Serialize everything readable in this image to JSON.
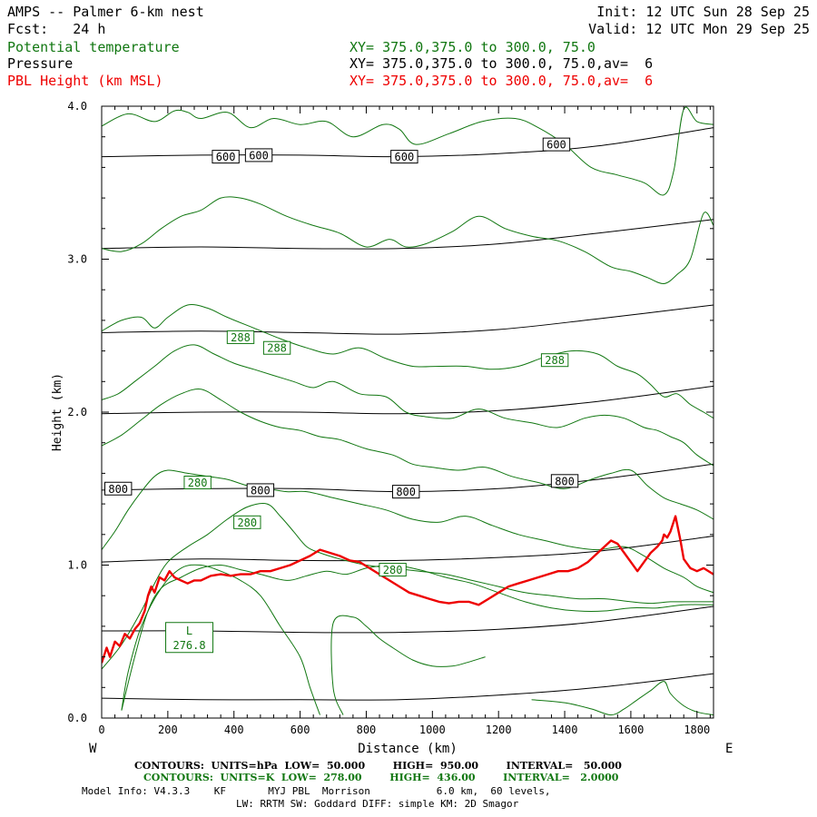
{
  "header": {
    "model": "AMPS -- Palmer 6-km nest",
    "fcst": "Fcst:   24 h",
    "init": "Init: 12 UTC Sun 28 Sep 25",
    "valid": "Valid: 12 UTC Mon 29 Sep 25",
    "fields": [
      {
        "name": "Potential temperature",
        "xy": "XY= 375.0,375.0 to 300.0, 75.0",
        "color": "#117711"
      },
      {
        "name": "Pressure",
        "xy": "XY= 375.0,375.0 to 300.0, 75.0,av=  6",
        "color": "#000000"
      },
      {
        "name": "PBL Height (km MSL)",
        "xy": "XY= 375.0,375.0 to 300.0, 75.0,av=  6",
        "color": "#ee0000"
      }
    ]
  },
  "footer": {
    "pressure_contours": "CONTOURS:  UNITS=hPa  LOW=  50.000        HIGH=  950.00        INTERVAL=   50.000",
    "theta_contours": "CONTOURS:  UNITS=K  LOW=  278.00        HIGH=  436.00        INTERVAL=   2.0000",
    "model_info": "Model Info: V4.3.3    KF       MYJ PBL  Morrison           6.0 km,  60 levels,",
    "model_info2": "LW: RRTM SW: Goddard DIFF: simple KM: 2D Smagor"
  },
  "chart_data": {
    "type": "line",
    "xlabel": "Distance (km)",
    "ylabel": "Height (km)",
    "xlim": [
      0,
      1850
    ],
    "ylim": [
      0.0,
      4.0
    ],
    "x_ticks": [
      0,
      200,
      400,
      600,
      800,
      1000,
      1200,
      1400,
      1600,
      1800
    ],
    "y_ticks": [
      "0.0",
      "1.0",
      "2.0",
      "3.0",
      "4.0"
    ],
    "left_end": "W",
    "right_end": "E",
    "colors": {
      "pressure": "#000000",
      "theta": "#117711",
      "pbl": "#ee0000"
    },
    "pressure_isobars": [
      {
        "x": [
          0,
          300,
          600,
          900,
          1200,
          1500,
          1850
        ],
        "y": [
          0.13,
          0.12,
          0.12,
          0.12,
          0.15,
          0.2,
          0.29
        ]
      },
      {
        "x": [
          0,
          300,
          600,
          900,
          1200,
          1500,
          1850
        ],
        "y": [
          0.57,
          0.57,
          0.56,
          0.56,
          0.58,
          0.63,
          0.73
        ]
      },
      {
        "x": [
          0,
          300,
          600,
          900,
          1200,
          1500,
          1850
        ],
        "y": [
          1.02,
          1.04,
          1.03,
          1.03,
          1.05,
          1.09,
          1.19
        ]
      },
      {
        "x": [
          0,
          300,
          600,
          900,
          1200,
          1500,
          1850
        ],
        "y": [
          1.49,
          1.5,
          1.5,
          1.48,
          1.5,
          1.56,
          1.66
        ]
      },
      {
        "x": [
          0,
          300,
          600,
          900,
          1200,
          1500,
          1850
        ],
        "y": [
          1.99,
          2.0,
          2.0,
          1.99,
          2.01,
          2.07,
          2.17
        ]
      },
      {
        "x": [
          0,
          300,
          600,
          900,
          1200,
          1500,
          1850
        ],
        "y": [
          2.52,
          2.53,
          2.52,
          2.51,
          2.54,
          2.61,
          2.7
        ]
      },
      {
        "x": [
          0,
          300,
          600,
          900,
          1200,
          1500,
          1850
        ],
        "y": [
          3.07,
          3.08,
          3.07,
          3.07,
          3.1,
          3.17,
          3.26
        ]
      },
      {
        "x": [
          0,
          300,
          600,
          900,
          1200,
          1500,
          1850
        ],
        "y": [
          3.67,
          3.68,
          3.68,
          3.67,
          3.69,
          3.74,
          3.86
        ]
      }
    ],
    "pressure_labels": [
      {
        "text": "600",
        "x": 375,
        "y": 3.67
      },
      {
        "text": "600",
        "x": 475,
        "y": 3.68
      },
      {
        "text": "600",
        "x": 915,
        "y": 3.67
      },
      {
        "text": "600",
        "x": 1375,
        "y": 3.75
      },
      {
        "text": "800",
        "x": 50,
        "y": 1.5
      },
      {
        "text": "800",
        "x": 480,
        "y": 1.49
      },
      {
        "text": "800",
        "x": 920,
        "y": 1.48
      },
      {
        "text": "800",
        "x": 1400,
        "y": 1.55
      }
    ],
    "theta_isotherms": [
      {
        "x": [
          0,
          80,
          160,
          220,
          260,
          300,
          380,
          450,
          520,
          600,
          680,
          760,
          850,
          900,
          950,
          1050,
          1150,
          1250,
          1320,
          1400,
          1480,
          1560,
          1640,
          1700,
          1730,
          1760,
          1800,
          1850
        ],
        "y": [
          3.87,
          3.95,
          3.9,
          3.97,
          3.96,
          3.92,
          3.96,
          3.86,
          3.92,
          3.88,
          3.9,
          3.8,
          3.88,
          3.85,
          3.75,
          3.82,
          3.9,
          3.92,
          3.86,
          3.75,
          3.6,
          3.55,
          3.5,
          3.42,
          3.58,
          3.98,
          3.9,
          3.88
        ]
      },
      {
        "x": [
          0,
          60,
          120,
          180,
          240,
          300,
          360,
          420,
          480,
          560,
          640,
          720,
          800,
          870,
          920,
          980,
          1060,
          1140,
          1220,
          1300,
          1380,
          1460,
          1540,
          1600,
          1650,
          1700,
          1740,
          1780,
          1820,
          1850
        ],
        "y": [
          3.07,
          3.05,
          3.1,
          3.2,
          3.28,
          3.32,
          3.4,
          3.4,
          3.36,
          3.28,
          3.22,
          3.17,
          3.08,
          3.13,
          3.08,
          3.1,
          3.18,
          3.28,
          3.2,
          3.15,
          3.12,
          3.05,
          2.95,
          2.92,
          2.88,
          2.84,
          2.9,
          3.0,
          3.3,
          3.22
        ]
      },
      {
        "x": [
          0,
          60,
          120,
          160,
          200,
          260,
          320,
          380,
          460,
          540,
          620,
          700,
          780,
          860,
          940,
          1020,
          1100,
          1180,
          1260,
          1340,
          1420,
          1500,
          1560,
          1620,
          1660,
          1700,
          1740,
          1780,
          1820,
          1850
        ],
        "y": [
          2.53,
          2.6,
          2.62,
          2.55,
          2.62,
          2.7,
          2.68,
          2.62,
          2.55,
          2.48,
          2.42,
          2.38,
          2.42,
          2.35,
          2.3,
          2.3,
          2.3,
          2.28,
          2.3,
          2.36,
          2.4,
          2.38,
          2.3,
          2.25,
          2.18,
          2.1,
          2.12,
          2.05,
          2.0,
          1.96
        ]
      },
      {
        "x": [
          0,
          50,
          100,
          160,
          220,
          280,
          340,
          400,
          460,
          520,
          580,
          640,
          700,
          780,
          860,
          920,
          980,
          1060,
          1140,
          1220,
          1300,
          1380,
          1460,
          1520,
          1580,
          1640,
          1680,
          1720,
          1760,
          1800,
          1850
        ],
        "y": [
          2.08,
          2.12,
          2.2,
          2.3,
          2.4,
          2.44,
          2.38,
          2.32,
          2.28,
          2.24,
          2.2,
          2.16,
          2.2,
          2.12,
          2.1,
          2.0,
          1.97,
          1.96,
          2.02,
          1.96,
          1.93,
          1.9,
          1.96,
          1.98,
          1.96,
          1.9,
          1.88,
          1.84,
          1.8,
          1.72,
          1.65
        ]
      },
      {
        "x": [
          0,
          60,
          120,
          180,
          240,
          300,
          360,
          420,
          480,
          540,
          600,
          660,
          720,
          800,
          880,
          940,
          1000,
          1080,
          1160,
          1240,
          1320,
          1400,
          1480,
          1540,
          1600,
          1650,
          1700,
          1750,
          1800,
          1850
        ],
        "y": [
          1.78,
          1.85,
          1.95,
          2.05,
          2.12,
          2.15,
          2.08,
          2.0,
          1.94,
          1.9,
          1.88,
          1.84,
          1.82,
          1.76,
          1.72,
          1.66,
          1.64,
          1.62,
          1.64,
          1.58,
          1.54,
          1.5,
          1.56,
          1.6,
          1.62,
          1.52,
          1.44,
          1.4,
          1.36,
          1.3
        ]
      },
      {
        "x": [
          0,
          40,
          80,
          120,
          160,
          200,
          260,
          320,
          380,
          440,
          500,
          560,
          620,
          700,
          780,
          860,
          940,
          1020,
          1100,
          1180,
          1260,
          1340,
          1420,
          1500,
          1580,
          1640,
          1700,
          1760,
          1800,
          1850
        ],
        "y": [
          1.1,
          1.22,
          1.36,
          1.48,
          1.58,
          1.62,
          1.6,
          1.58,
          1.56,
          1.52,
          1.5,
          1.48,
          1.48,
          1.44,
          1.4,
          1.36,
          1.3,
          1.28,
          1.32,
          1.26,
          1.2,
          1.16,
          1.12,
          1.1,
          1.12,
          1.06,
          0.98,
          0.92,
          0.86,
          0.82
        ]
      },
      {
        "x": [
          0,
          60,
          120,
          160,
          200,
          260,
          320,
          380,
          440,
          500,
          540,
          580,
          620,
          660,
          720,
          800,
          880,
          960,
          1040,
          1120,
          1200,
          1280,
          1360,
          1440,
          1520,
          1600,
          1660,
          1720,
          1780,
          1850
        ],
        "y": [
          0.32,
          0.48,
          0.7,
          0.88,
          1.02,
          1.12,
          1.2,
          1.3,
          1.38,
          1.4,
          1.32,
          1.22,
          1.12,
          1.08,
          1.04,
          1.0,
          0.98,
          0.96,
          0.94,
          0.9,
          0.86,
          0.82,
          0.8,
          0.78,
          0.78,
          0.76,
          0.75,
          0.76,
          0.76,
          0.76
        ]
      },
      {
        "x": [
          60,
          100,
          140,
          180,
          240,
          300,
          360,
          420,
          480,
          560,
          620,
          680,
          740,
          800,
          880,
          960,
          1040,
          1120,
          1200,
          1280,
          1360,
          1440,
          1520,
          1600,
          1680,
          1760,
          1850
        ],
        "y": [
          0.05,
          0.4,
          0.7,
          0.85,
          0.92,
          0.98,
          1.0,
          0.97,
          0.94,
          0.9,
          0.93,
          0.96,
          0.94,
          0.98,
          1.0,
          0.97,
          0.92,
          0.88,
          0.82,
          0.76,
          0.72,
          0.7,
          0.7,
          0.72,
          0.72,
          0.74,
          0.74
        ]
      },
      {
        "x": [
          60,
          80,
          120,
          180,
          240,
          300,
          360,
          420,
          480,
          540,
          600,
          630,
          660
        ],
        "y": [
          0.05,
          0.3,
          0.6,
          0.85,
          0.98,
          1.0,
          0.96,
          0.9,
          0.8,
          0.6,
          0.4,
          0.2,
          0.02
        ]
      },
      {
        "x": [
          730,
          700,
          700,
          760,
          800,
          840,
          880,
          940,
          1000,
          1060,
          1100,
          1160
        ],
        "y": [
          0.02,
          0.2,
          0.62,
          0.66,
          0.6,
          0.52,
          0.46,
          0.38,
          0.34,
          0.34,
          0.36,
          0.4
        ]
      },
      {
        "x": [
          1300,
          1400,
          1480,
          1540,
          1580,
          1620,
          1660,
          1700,
          1720,
          1760,
          1800,
          1850
        ],
        "y": [
          0.12,
          0.1,
          0.06,
          0.02,
          0.06,
          0.12,
          0.18,
          0.24,
          0.16,
          0.08,
          0.04,
          0.02
        ]
      }
    ],
    "theta_labels": [
      {
        "text": "288",
        "x": 420,
        "y": 2.49
      },
      {
        "text": "288",
        "x": 530,
        "y": 2.42
      },
      {
        "text": "288",
        "x": 1370,
        "y": 2.34
      },
      {
        "text": "280",
        "x": 290,
        "y": 1.54
      },
      {
        "text": "280",
        "x": 440,
        "y": 1.28
      },
      {
        "text": "280",
        "x": 880,
        "y": 0.97
      }
    ],
    "low_label": {
      "letter": "L",
      "value": "276.8",
      "x": 265,
      "y": 0.5
    },
    "pbl_height": {
      "x": [
        0,
        15,
        25,
        40,
        55,
        70,
        85,
        100,
        115,
        130,
        140,
        150,
        160,
        175,
        190,
        205,
        220,
        240,
        260,
        280,
        300,
        330,
        360,
        390,
        420,
        450,
        480,
        510,
        540,
        570,
        600,
        630,
        660,
        690,
        720,
        750,
        780,
        810,
        840,
        870,
        900,
        930,
        960,
        990,
        1020,
        1050,
        1080,
        1110,
        1140,
        1170,
        1200,
        1230,
        1260,
        1290,
        1320,
        1350,
        1380,
        1410,
        1440,
        1470,
        1500,
        1520,
        1540,
        1560,
        1580,
        1600,
        1620,
        1640,
        1660,
        1680,
        1695,
        1700,
        1710,
        1720,
        1735,
        1750,
        1760,
        1780,
        1800,
        1820,
        1850
      ],
      "y": [
        0.36,
        0.46,
        0.4,
        0.5,
        0.47,
        0.55,
        0.52,
        0.58,
        0.62,
        0.7,
        0.8,
        0.86,
        0.82,
        0.92,
        0.9,
        0.96,
        0.92,
        0.9,
        0.88,
        0.9,
        0.9,
        0.93,
        0.94,
        0.93,
        0.94,
        0.94,
        0.96,
        0.96,
        0.98,
        1.0,
        1.03,
        1.06,
        1.1,
        1.08,
        1.06,
        1.03,
        1.02,
        0.98,
        0.94,
        0.9,
        0.86,
        0.82,
        0.8,
        0.78,
        0.76,
        0.75,
        0.76,
        0.76,
        0.74,
        0.78,
        0.82,
        0.86,
        0.88,
        0.9,
        0.92,
        0.94,
        0.96,
        0.96,
        0.98,
        1.02,
        1.08,
        1.12,
        1.16,
        1.14,
        1.08,
        1.02,
        0.96,
        1.02,
        1.08,
        1.12,
        1.16,
        1.2,
        1.18,
        1.22,
        1.32,
        1.16,
        1.04,
        0.98,
        0.96,
        0.98,
        0.94
      ]
    }
  }
}
